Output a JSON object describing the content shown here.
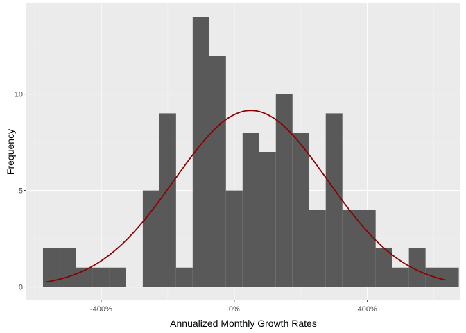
{
  "chart_data": {
    "type": "bar",
    "subtype": "histogram",
    "xlabel": "Annualized Monthly Growth Rates",
    "ylabel": "Frequency",
    "x_unit": "%",
    "xlim": [
      -625,
      680
    ],
    "ylim": [
      -0.7,
      14.7
    ],
    "x_ticks": [
      -400,
      0,
      400
    ],
    "x_tick_labels": [
      "-400%",
      "0%",
      "400%"
    ],
    "y_ticks": [
      0,
      5,
      10
    ],
    "y_tick_labels": [
      "0",
      "5",
      "10"
    ],
    "grid": true,
    "bin_width": 50,
    "bins": [
      {
        "x0": -575,
        "x1": -525,
        "count": 2
      },
      {
        "x0": -525,
        "x1": -475,
        "count": 2
      },
      {
        "x0": -475,
        "x1": -425,
        "count": 1
      },
      {
        "x0": -425,
        "x1": -375,
        "count": 1
      },
      {
        "x0": -375,
        "x1": -325,
        "count": 1
      },
      {
        "x0": -325,
        "x1": -275,
        "count": 0
      },
      {
        "x0": -275,
        "x1": -225,
        "count": 5
      },
      {
        "x0": -225,
        "x1": -175,
        "count": 9
      },
      {
        "x0": -175,
        "x1": -125,
        "count": 1
      },
      {
        "x0": -125,
        "x1": -75,
        "count": 14
      },
      {
        "x0": -75,
        "x1": -25,
        "count": 12
      },
      {
        "x0": -25,
        "x1": 25,
        "count": 5
      },
      {
        "x0": 25,
        "x1": 75,
        "count": 8
      },
      {
        "x0": 75,
        "x1": 125,
        "count": 7
      },
      {
        "x0": 125,
        "x1": 175,
        "count": 10
      },
      {
        "x0": 175,
        "x1": 225,
        "count": 8
      },
      {
        "x0": 225,
        "x1": 275,
        "count": 4
      },
      {
        "x0": 275,
        "x1": 325,
        "count": 9
      },
      {
        "x0": 325,
        "x1": 375,
        "count": 4
      },
      {
        "x0": 375,
        "x1": 425,
        "count": 4
      },
      {
        "x0": 425,
        "x1": 475,
        "count": 2
      },
      {
        "x0": 475,
        "x1": 525,
        "count": 1
      },
      {
        "x0": 525,
        "x1": 575,
        "count": 2
      },
      {
        "x0": 575,
        "x1": 625,
        "count": 1
      },
      {
        "x0": 625,
        "x1": 675,
        "count": 1
      }
    ],
    "density_curve": {
      "mean": 50,
      "sd": 230,
      "peak": 9.15,
      "x_range": [
        -565,
        635
      ]
    },
    "colors": {
      "panel_bg": "#ebebeb",
      "grid_major": "#ffffff",
      "grid_minor": "#f5f5f5",
      "bar_fill": "#595959",
      "curve": "#8b0000",
      "tick": "#333333"
    }
  }
}
